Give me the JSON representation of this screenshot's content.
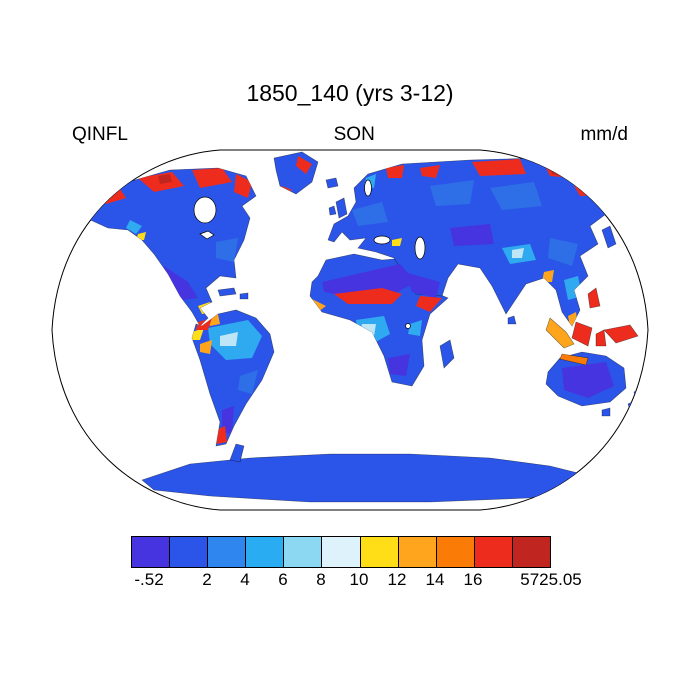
{
  "title": "1850_140 (yrs 3-12)",
  "header": {
    "left_label": "QINFL",
    "center_label": "SON",
    "right_label": "mm/d"
  },
  "colorbar": {
    "colors": [
      "#4534E0",
      "#2B55E8",
      "#2E86EE",
      "#29ACF2",
      "#8CD7F2",
      "#DDF2FA",
      "#FFDE17",
      "#FFA51D",
      "#FB7B07",
      "#EE2C1E",
      "#C0261F"
    ],
    "tick_labels": [
      "-.52",
      "2",
      "4",
      "6",
      "8",
      "10",
      "12",
      "14",
      "16",
      "5725.05"
    ]
  },
  "chart_data": {
    "type": "heatmap",
    "title": "1850_140 (yrs 3-12)",
    "variable": "QINFL",
    "season": "SON",
    "units": "mm/d",
    "projection": "robinson",
    "legend_position": "bottom",
    "value_range": [
      -0.52,
      5725.05
    ],
    "colorbar_tick_labels": [
      "-.52",
      "2",
      "4",
      "6",
      "8",
      "10",
      "12",
      "14",
      "16",
      "5725.05"
    ],
    "colorbar_colors": [
      "#4534E0",
      "#2B55E8",
      "#2E86EE",
      "#29ACF2",
      "#8CD7F2",
      "#DDF2FA",
      "#FFDE17",
      "#FFA51D",
      "#FB7B07",
      "#EE2C1E",
      "#C0261F"
    ],
    "notes": "Global land-only map; oceans masked white. Most land 0-2 mm/d (blue); high values (>16, red) over Arctic Canada, Greenland margins, northern Siberia, Sahel/Horn of Africa, southern Chile, Indonesia and New Guinea; moderate values (4-10, cyan/pale) over Amazon and Congo basins, Tibet and Southeast Asia; yellow/orange along Central America, NW South America Andes and Guinea coast."
  }
}
